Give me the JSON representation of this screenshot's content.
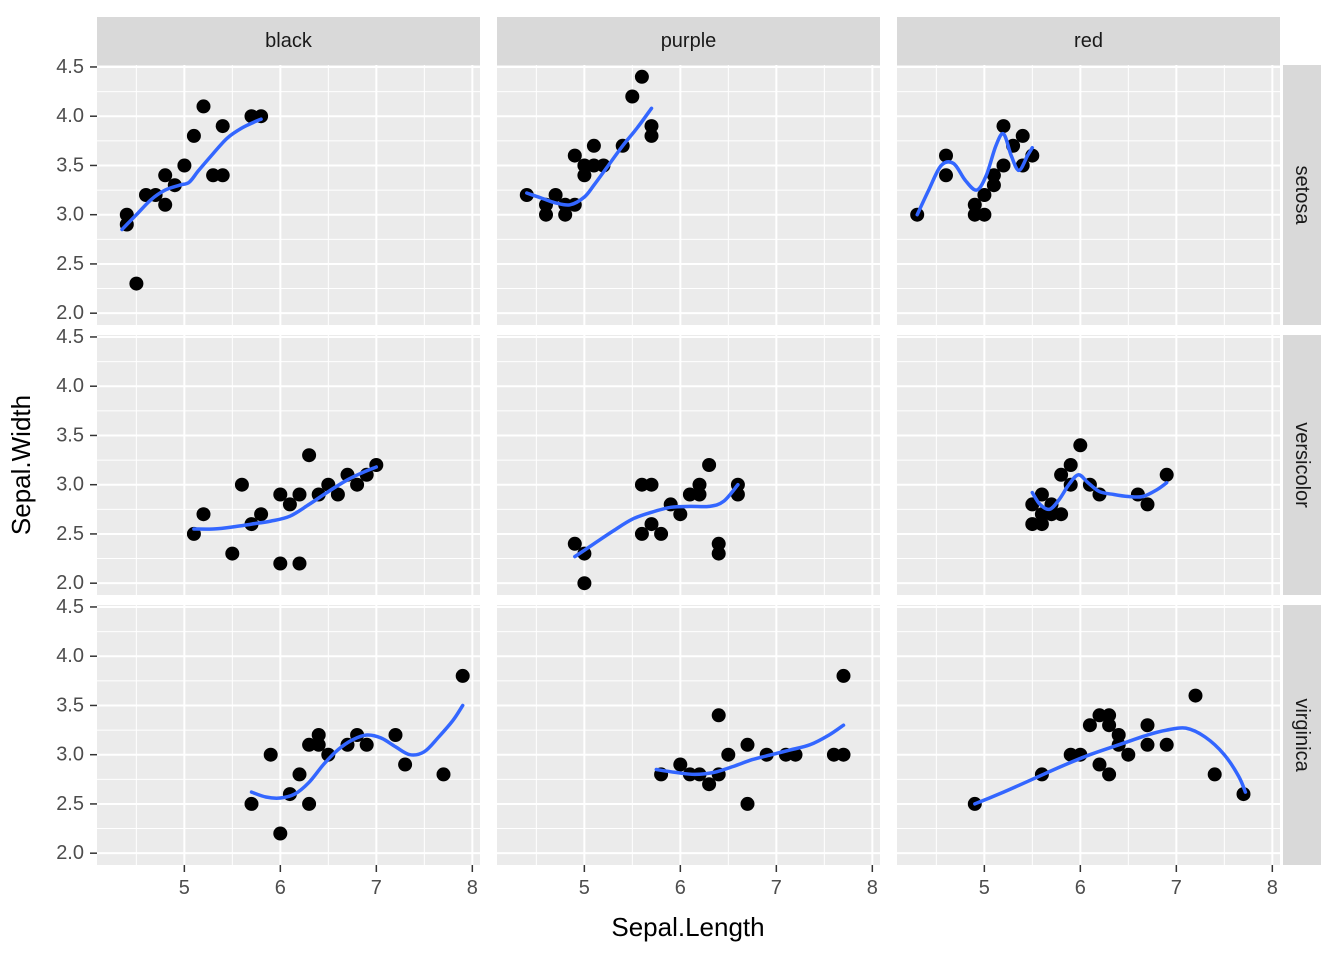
{
  "chart_data": {
    "type": "scatter",
    "title": "",
    "xlabel": "Sepal.Length",
    "ylabel": "Sepal.Width",
    "col_facets": [
      "black",
      "purple",
      "red"
    ],
    "row_facets": [
      "setosa",
      "versicolor",
      "virginica"
    ],
    "xlim": [
      4.09,
      8.08
    ],
    "ylim": [
      1.88,
      4.52
    ],
    "x_ticks": [
      5,
      6,
      7,
      8
    ],
    "y_ticks": [
      2.0,
      2.5,
      3.0,
      3.5,
      4.0,
      4.5
    ],
    "x_minor": [
      4.5,
      5.5,
      6.5,
      7.5
    ],
    "y_minor": [
      2.25,
      2.75,
      3.25,
      3.75,
      4.25
    ],
    "legend": "none",
    "grid": "on",
    "colors": {
      "panel_bg": "#EBEBEB",
      "strip_bg": "#D9D9D9",
      "gridline": "#FFFFFF",
      "point": "#000000",
      "smooth": "#3366FF",
      "tick_mark": "#333333",
      "tick_text": "#4D4D4D",
      "strip_text": "#1A1A1A",
      "axis_title_text": "#000000"
    },
    "panels": [
      {
        "row": "setosa",
        "col": "black",
        "points": [
          [
            4.4,
            3.0
          ],
          [
            4.4,
            2.9
          ],
          [
            4.5,
            2.3
          ],
          [
            4.6,
            3.2
          ],
          [
            4.7,
            3.2
          ],
          [
            4.8,
            3.1
          ],
          [
            4.8,
            3.4
          ],
          [
            4.9,
            3.3
          ],
          [
            5.0,
            3.5
          ],
          [
            5.1,
            3.8
          ],
          [
            5.2,
            4.1
          ],
          [
            5.3,
            3.4
          ],
          [
            5.4,
            3.9
          ],
          [
            5.4,
            3.4
          ],
          [
            5.7,
            4.0
          ],
          [
            5.8,
            4.0
          ]
        ],
        "smooth": [
          [
            4.35,
            2.85
          ],
          [
            4.5,
            3.0
          ],
          [
            4.65,
            3.15
          ],
          [
            4.8,
            3.25
          ],
          [
            4.95,
            3.3
          ],
          [
            5.05,
            3.33
          ],
          [
            5.15,
            3.45
          ],
          [
            5.3,
            3.62
          ],
          [
            5.45,
            3.78
          ],
          [
            5.6,
            3.88
          ],
          [
            5.75,
            3.95
          ],
          [
            5.8,
            3.97
          ]
        ]
      },
      {
        "row": "setosa",
        "col": "purple",
        "points": [
          [
            4.4,
            3.2
          ],
          [
            4.6,
            3.1
          ],
          [
            4.6,
            3.0
          ],
          [
            4.7,
            3.2
          ],
          [
            4.8,
            3.0
          ],
          [
            4.8,
            3.1
          ],
          [
            4.9,
            3.1
          ],
          [
            4.9,
            3.6
          ],
          [
            5.0,
            3.4
          ],
          [
            5.0,
            3.5
          ],
          [
            5.1,
            3.5
          ],
          [
            5.1,
            3.7
          ],
          [
            5.2,
            3.5
          ],
          [
            5.4,
            3.7
          ],
          [
            5.5,
            4.2
          ],
          [
            5.6,
            4.4
          ],
          [
            5.7,
            3.9
          ],
          [
            5.7,
            3.8
          ]
        ],
        "smooth": [
          [
            4.4,
            3.22
          ],
          [
            4.55,
            3.17
          ],
          [
            4.7,
            3.12
          ],
          [
            4.85,
            3.1
          ],
          [
            5.0,
            3.18
          ],
          [
            5.1,
            3.3
          ],
          [
            5.25,
            3.5
          ],
          [
            5.4,
            3.7
          ],
          [
            5.55,
            3.88
          ],
          [
            5.7,
            4.08
          ]
        ]
      },
      {
        "row": "setosa",
        "col": "red",
        "points": [
          [
            4.3,
            3.0
          ],
          [
            4.6,
            3.4
          ],
          [
            4.6,
            3.6
          ],
          [
            4.9,
            3.1
          ],
          [
            4.9,
            3.0
          ],
          [
            5.0,
            3.0
          ],
          [
            5.0,
            3.2
          ],
          [
            5.1,
            3.4
          ],
          [
            5.1,
            3.3
          ],
          [
            5.2,
            3.9
          ],
          [
            5.2,
            3.5
          ],
          [
            5.3,
            3.7
          ],
          [
            5.4,
            3.5
          ],
          [
            5.4,
            3.8
          ],
          [
            5.5,
            3.6
          ]
        ],
        "smooth": [
          [
            4.3,
            3.0
          ],
          [
            4.42,
            3.25
          ],
          [
            4.55,
            3.5
          ],
          [
            4.68,
            3.52
          ],
          [
            4.8,
            3.35
          ],
          [
            4.92,
            3.25
          ],
          [
            5.02,
            3.4
          ],
          [
            5.12,
            3.7
          ],
          [
            5.2,
            3.82
          ],
          [
            5.28,
            3.6
          ],
          [
            5.36,
            3.45
          ],
          [
            5.45,
            3.6
          ],
          [
            5.5,
            3.68
          ]
        ]
      },
      {
        "row": "versicolor",
        "col": "black",
        "points": [
          [
            5.1,
            2.5
          ],
          [
            5.2,
            2.7
          ],
          [
            5.5,
            2.3
          ],
          [
            5.6,
            3.0
          ],
          [
            5.7,
            2.6
          ],
          [
            5.8,
            2.7
          ],
          [
            6.0,
            2.2
          ],
          [
            6.0,
            2.9
          ],
          [
            6.1,
            2.8
          ],
          [
            6.2,
            2.2
          ],
          [
            6.2,
            2.9
          ],
          [
            6.3,
            3.3
          ],
          [
            6.4,
            2.9
          ],
          [
            6.5,
            3.0
          ],
          [
            6.6,
            2.9
          ],
          [
            6.7,
            3.1
          ],
          [
            6.8,
            3.0
          ],
          [
            6.9,
            3.1
          ],
          [
            7.0,
            3.2
          ]
        ],
        "smooth": [
          [
            5.1,
            2.55
          ],
          [
            5.3,
            2.55
          ],
          [
            5.5,
            2.57
          ],
          [
            5.7,
            2.6
          ],
          [
            5.9,
            2.63
          ],
          [
            6.1,
            2.68
          ],
          [
            6.3,
            2.8
          ],
          [
            6.5,
            2.93
          ],
          [
            6.7,
            3.05
          ],
          [
            6.85,
            3.12
          ],
          [
            7.0,
            3.18
          ]
        ]
      },
      {
        "row": "versicolor",
        "col": "purple",
        "points": [
          [
            4.9,
            2.4
          ],
          [
            5.0,
            2.3
          ],
          [
            5.0,
            2.0
          ],
          [
            5.6,
            3.0
          ],
          [
            5.6,
            2.5
          ],
          [
            5.7,
            3.0
          ],
          [
            5.7,
            2.6
          ],
          [
            5.8,
            2.5
          ],
          [
            5.9,
            2.8
          ],
          [
            6.0,
            2.7
          ],
          [
            6.1,
            2.9
          ],
          [
            6.2,
            3.0
          ],
          [
            6.2,
            2.9
          ],
          [
            6.3,
            3.2
          ],
          [
            6.4,
            2.4
          ],
          [
            6.4,
            2.3
          ],
          [
            6.6,
            3.0
          ],
          [
            6.6,
            2.9
          ]
        ],
        "smooth": [
          [
            4.9,
            2.27
          ],
          [
            5.1,
            2.4
          ],
          [
            5.3,
            2.53
          ],
          [
            5.5,
            2.65
          ],
          [
            5.7,
            2.72
          ],
          [
            5.9,
            2.77
          ],
          [
            6.1,
            2.78
          ],
          [
            6.3,
            2.78
          ],
          [
            6.45,
            2.83
          ],
          [
            6.6,
            3.0
          ]
        ]
      },
      {
        "row": "versicolor",
        "col": "red",
        "points": [
          [
            5.5,
            2.8
          ],
          [
            5.5,
            2.6
          ],
          [
            5.6,
            2.9
          ],
          [
            5.6,
            2.7
          ],
          [
            5.6,
            2.6
          ],
          [
            5.7,
            2.8
          ],
          [
            5.7,
            2.7
          ],
          [
            5.8,
            2.7
          ],
          [
            5.8,
            3.1
          ],
          [
            5.9,
            3.0
          ],
          [
            5.9,
            3.2
          ],
          [
            6.0,
            3.4
          ],
          [
            6.1,
            3.0
          ],
          [
            6.2,
            2.9
          ],
          [
            6.6,
            2.9
          ],
          [
            6.7,
            2.8
          ],
          [
            6.9,
            3.1
          ]
        ],
        "smooth": [
          [
            5.5,
            2.92
          ],
          [
            5.58,
            2.8
          ],
          [
            5.68,
            2.75
          ],
          [
            5.78,
            2.85
          ],
          [
            5.88,
            3.0
          ],
          [
            5.98,
            3.1
          ],
          [
            6.08,
            3.02
          ],
          [
            6.2,
            2.93
          ],
          [
            6.35,
            2.9
          ],
          [
            6.5,
            2.88
          ],
          [
            6.65,
            2.88
          ],
          [
            6.8,
            2.95
          ],
          [
            6.9,
            3.02
          ]
        ]
      },
      {
        "row": "virginica",
        "col": "black",
        "points": [
          [
            5.7,
            2.5
          ],
          [
            5.9,
            3.0
          ],
          [
            6.0,
            2.2
          ],
          [
            6.1,
            2.6
          ],
          [
            6.2,
            2.8
          ],
          [
            6.3,
            2.5
          ],
          [
            6.3,
            3.1
          ],
          [
            6.4,
            3.1
          ],
          [
            6.4,
            3.2
          ],
          [
            6.5,
            3.0
          ],
          [
            6.7,
            3.1
          ],
          [
            6.8,
            3.2
          ],
          [
            6.9,
            3.1
          ],
          [
            7.2,
            3.2
          ],
          [
            7.3,
            2.9
          ],
          [
            7.7,
            2.8
          ],
          [
            7.9,
            3.8
          ]
        ],
        "smooth": [
          [
            5.7,
            2.62
          ],
          [
            5.85,
            2.57
          ],
          [
            6.0,
            2.56
          ],
          [
            6.15,
            2.6
          ],
          [
            6.3,
            2.72
          ],
          [
            6.45,
            2.9
          ],
          [
            6.6,
            3.05
          ],
          [
            6.75,
            3.15
          ],
          [
            6.9,
            3.2
          ],
          [
            7.05,
            3.17
          ],
          [
            7.2,
            3.08
          ],
          [
            7.35,
            3.0
          ],
          [
            7.5,
            3.03
          ],
          [
            7.65,
            3.18
          ],
          [
            7.8,
            3.35
          ],
          [
            7.9,
            3.5
          ]
        ]
      },
      {
        "row": "virginica",
        "col": "purple",
        "points": [
          [
            5.8,
            2.8
          ],
          [
            6.0,
            2.9
          ],
          [
            6.1,
            2.8
          ],
          [
            6.2,
            2.8
          ],
          [
            6.3,
            2.7
          ],
          [
            6.4,
            2.8
          ],
          [
            6.4,
            3.4
          ],
          [
            6.5,
            3.0
          ],
          [
            6.7,
            2.5
          ],
          [
            6.7,
            3.1
          ],
          [
            6.9,
            3.0
          ],
          [
            7.1,
            3.0
          ],
          [
            7.2,
            3.0
          ],
          [
            7.6,
            3.0
          ],
          [
            7.7,
            3.8
          ],
          [
            7.7,
            3.0
          ]
        ],
        "smooth": [
          [
            5.75,
            2.85
          ],
          [
            5.95,
            2.82
          ],
          [
            6.15,
            2.8
          ],
          [
            6.35,
            2.82
          ],
          [
            6.55,
            2.88
          ],
          [
            6.75,
            2.95
          ],
          [
            6.95,
            3.0
          ],
          [
            7.15,
            3.05
          ],
          [
            7.35,
            3.1
          ],
          [
            7.55,
            3.2
          ],
          [
            7.7,
            3.3
          ]
        ]
      },
      {
        "row": "virginica",
        "col": "red",
        "points": [
          [
            4.9,
            2.5
          ],
          [
            5.6,
            2.8
          ],
          [
            5.9,
            3.0
          ],
          [
            6.0,
            3.0
          ],
          [
            6.1,
            3.3
          ],
          [
            6.2,
            3.4
          ],
          [
            6.2,
            2.9
          ],
          [
            6.3,
            3.4
          ],
          [
            6.3,
            3.3
          ],
          [
            6.3,
            2.8
          ],
          [
            6.4,
            3.2
          ],
          [
            6.4,
            3.1
          ],
          [
            6.5,
            3.0
          ],
          [
            6.7,
            3.3
          ],
          [
            6.7,
            3.1
          ],
          [
            6.9,
            3.1
          ],
          [
            7.2,
            3.6
          ],
          [
            7.4,
            2.8
          ],
          [
            7.7,
            2.6
          ]
        ],
        "smooth": [
          [
            4.9,
            2.5
          ],
          [
            5.2,
            2.62
          ],
          [
            5.5,
            2.75
          ],
          [
            5.8,
            2.88
          ],
          [
            6.1,
            3.0
          ],
          [
            6.4,
            3.1
          ],
          [
            6.7,
            3.2
          ],
          [
            6.9,
            3.25
          ],
          [
            7.1,
            3.27
          ],
          [
            7.3,
            3.18
          ],
          [
            7.5,
            3.0
          ],
          [
            7.65,
            2.78
          ],
          [
            7.72,
            2.62
          ]
        ]
      }
    ]
  }
}
